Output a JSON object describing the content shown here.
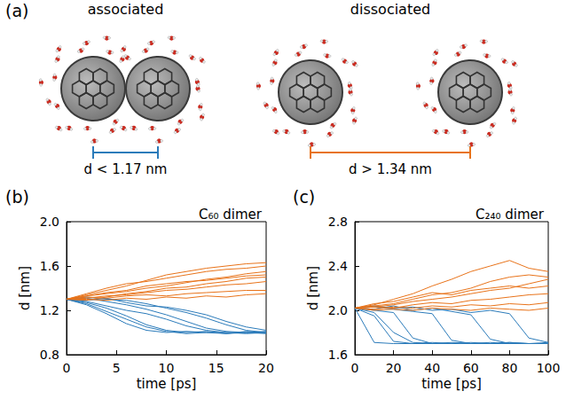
{
  "panel_a": {
    "panel_label": "(a)",
    "states": [
      {
        "title": "associated",
        "distance_label": "d < 1.17 nm",
        "color": "#2b7bba"
      },
      {
        "title": "dissociated",
        "distance_label": "d > 1.34 nm",
        "color": "#e8731a"
      }
    ]
  },
  "chart_data": [
    {
      "panel_label": "(b)",
      "type": "line",
      "title": "C₆₀ dimer",
      "x_label": "time [ps]",
      "y_label": "d [nm]",
      "x": [
        0,
        2,
        4,
        6,
        8,
        10,
        12,
        14,
        16,
        18,
        20
      ],
      "xlim": [
        0,
        20
      ],
      "xticks": [
        0,
        5,
        10,
        15,
        20
      ],
      "ylim": [
        0.8,
        2.0
      ],
      "yticks": [
        0.8,
        1.2,
        1.6,
        {
          "value": 2.0,
          "label": "2.0"
        }
      ],
      "series": [
        {
          "color": "#2b7bba",
          "values": [
            1.3,
            1.27,
            1.22,
            1.15,
            1.07,
            1.02,
            1.0,
            1.01,
            0.99,
            1.0,
            1.0
          ]
        },
        {
          "color": "#2b7bba",
          "values": [
            1.3,
            1.31,
            1.28,
            1.25,
            1.21,
            1.16,
            1.1,
            1.04,
            1.01,
            1.0,
            0.99
          ]
        },
        {
          "color": "#2b7bba",
          "values": [
            1.3,
            1.25,
            1.17,
            1.08,
            1.02,
            1.0,
            1.01,
            1.0,
            0.99,
            1.01,
            1.0
          ]
        },
        {
          "color": "#2b7bba",
          "values": [
            1.3,
            1.32,
            1.3,
            1.29,
            1.26,
            1.22,
            1.18,
            1.13,
            1.07,
            1.02,
            1.0
          ]
        },
        {
          "color": "#2b7bba",
          "values": [
            1.3,
            1.28,
            1.24,
            1.2,
            1.17,
            1.12,
            1.06,
            1.02,
            1.0,
            1.0,
            1.01
          ]
        },
        {
          "color": "#2b7bba",
          "values": [
            1.3,
            1.29,
            1.31,
            1.27,
            1.24,
            1.23,
            1.2,
            1.16,
            1.1,
            1.05,
            1.02
          ]
        },
        {
          "color": "#2b7bba",
          "values": [
            1.3,
            1.26,
            1.19,
            1.12,
            1.05,
            1.01,
            0.99,
            1.0,
            1.0,
            0.99,
            1.0
          ]
        },
        {
          "color": "#e8731a",
          "values": [
            1.3,
            1.34,
            1.38,
            1.42,
            1.47,
            1.52,
            1.55,
            1.58,
            1.6,
            1.62,
            1.63
          ]
        },
        {
          "color": "#e8731a",
          "values": [
            1.3,
            1.33,
            1.35,
            1.37,
            1.4,
            1.42,
            1.45,
            1.48,
            1.5,
            1.53,
            1.55
          ]
        },
        {
          "color": "#e8731a",
          "values": [
            1.3,
            1.31,
            1.33,
            1.34,
            1.36,
            1.38,
            1.39,
            1.41,
            1.43,
            1.44,
            1.46
          ]
        },
        {
          "color": "#e8731a",
          "values": [
            1.3,
            1.32,
            1.31,
            1.33,
            1.34,
            1.33,
            1.35,
            1.36,
            1.37,
            1.38,
            1.38
          ]
        },
        {
          "color": "#e8731a",
          "values": [
            1.3,
            1.35,
            1.4,
            1.44,
            1.46,
            1.49,
            1.52,
            1.55,
            1.57,
            1.58,
            1.6
          ]
        },
        {
          "color": "#e8731a",
          "values": [
            1.3,
            1.29,
            1.32,
            1.35,
            1.37,
            1.4,
            1.41,
            1.44,
            1.46,
            1.49,
            1.5
          ]
        },
        {
          "color": "#e8731a",
          "values": [
            1.3,
            1.3,
            1.29,
            1.31,
            1.3,
            1.32,
            1.31,
            1.33,
            1.32,
            1.34,
            1.35
          ]
        },
        {
          "color": "#e8731a",
          "values": [
            1.3,
            1.33,
            1.36,
            1.38,
            1.42,
            1.44,
            1.46,
            1.47,
            1.49,
            1.51,
            1.52
          ]
        }
      ]
    },
    {
      "panel_label": "(c)",
      "type": "line",
      "title": "C₂₄₀ dimer",
      "x_label": "time [ps]",
      "y_label": "d [nm]",
      "x": [
        0,
        10,
        20,
        30,
        40,
        50,
        60,
        70,
        80,
        90,
        100
      ],
      "xlim": [
        0,
        100
      ],
      "xticks": [
        0,
        20,
        40,
        60,
        80,
        100
      ],
      "ylim": [
        1.6,
        2.8
      ],
      "yticks": [
        1.6,
        {
          "value": 2.0,
          "label": "2.0"
        },
        2.4,
        2.8
      ],
      "series": [
        {
          "color": "#2b7bba",
          "values": [
            2.02,
            1.71,
            1.7,
            1.7,
            1.71,
            1.7,
            1.7,
            1.7,
            1.71,
            1.7,
            1.7
          ]
        },
        {
          "color": "#2b7bba",
          "values": [
            2.02,
            1.95,
            1.72,
            1.7,
            1.7,
            1.71,
            1.7,
            1.7,
            1.7,
            1.7,
            1.71
          ]
        },
        {
          "color": "#2b7bba",
          "values": [
            2.02,
            2.0,
            1.98,
            1.75,
            1.7,
            1.7,
            1.71,
            1.7,
            1.7,
            1.7,
            1.7
          ]
        },
        {
          "color": "#2b7bba",
          "values": [
            2.02,
            2.03,
            2.01,
            1.99,
            1.97,
            1.73,
            1.7,
            1.7,
            1.71,
            1.7,
            1.7
          ]
        },
        {
          "color": "#2b7bba",
          "values": [
            2.02,
            2.01,
            2.04,
            2.0,
            2.02,
            1.99,
            1.96,
            1.74,
            1.7,
            1.7,
            1.7
          ]
        },
        {
          "color": "#2b7bba",
          "values": [
            2.02,
            1.98,
            1.8,
            1.71,
            1.7,
            1.7,
            1.7,
            1.71,
            1.7,
            1.7,
            1.7
          ]
        },
        {
          "color": "#2b7bba",
          "values": [
            2.02,
            2.04,
            2.02,
            2.03,
            2.0,
            2.01,
            1.98,
            2.0,
            1.97,
            1.75,
            1.71
          ]
        },
        {
          "color": "#e8731a",
          "values": [
            2.02,
            2.05,
            2.1,
            2.15,
            2.22,
            2.28,
            2.35,
            2.4,
            2.45,
            2.38,
            2.35
          ]
        },
        {
          "color": "#e8731a",
          "values": [
            2.02,
            2.03,
            2.05,
            2.08,
            2.1,
            2.12,
            2.15,
            2.18,
            2.2,
            2.24,
            2.28
          ]
        },
        {
          "color": "#e8731a",
          "values": [
            2.02,
            2.01,
            2.03,
            2.02,
            2.04,
            2.03,
            2.05,
            2.04,
            2.06,
            2.05,
            2.07
          ]
        },
        {
          "color": "#e8731a",
          "values": [
            2.02,
            2.04,
            2.06,
            2.1,
            2.14,
            2.16,
            2.2,
            2.26,
            2.3,
            2.32,
            2.3
          ]
        },
        {
          "color": "#e8731a",
          "values": [
            2.02,
            2.0,
            2.01,
            2.0,
            2.02,
            2.01,
            2.0,
            2.02,
            2.01,
            2.0,
            2.02
          ]
        },
        {
          "color": "#e8731a",
          "values": [
            2.02,
            2.06,
            2.08,
            2.12,
            2.16,
            2.14,
            2.18,
            2.2,
            2.22,
            2.2,
            2.22
          ]
        },
        {
          "color": "#e8731a",
          "values": [
            2.02,
            2.03,
            2.02,
            2.05,
            2.07,
            2.06,
            2.09,
            2.1,
            2.12,
            2.14,
            2.15
          ]
        }
      ]
    }
  ]
}
